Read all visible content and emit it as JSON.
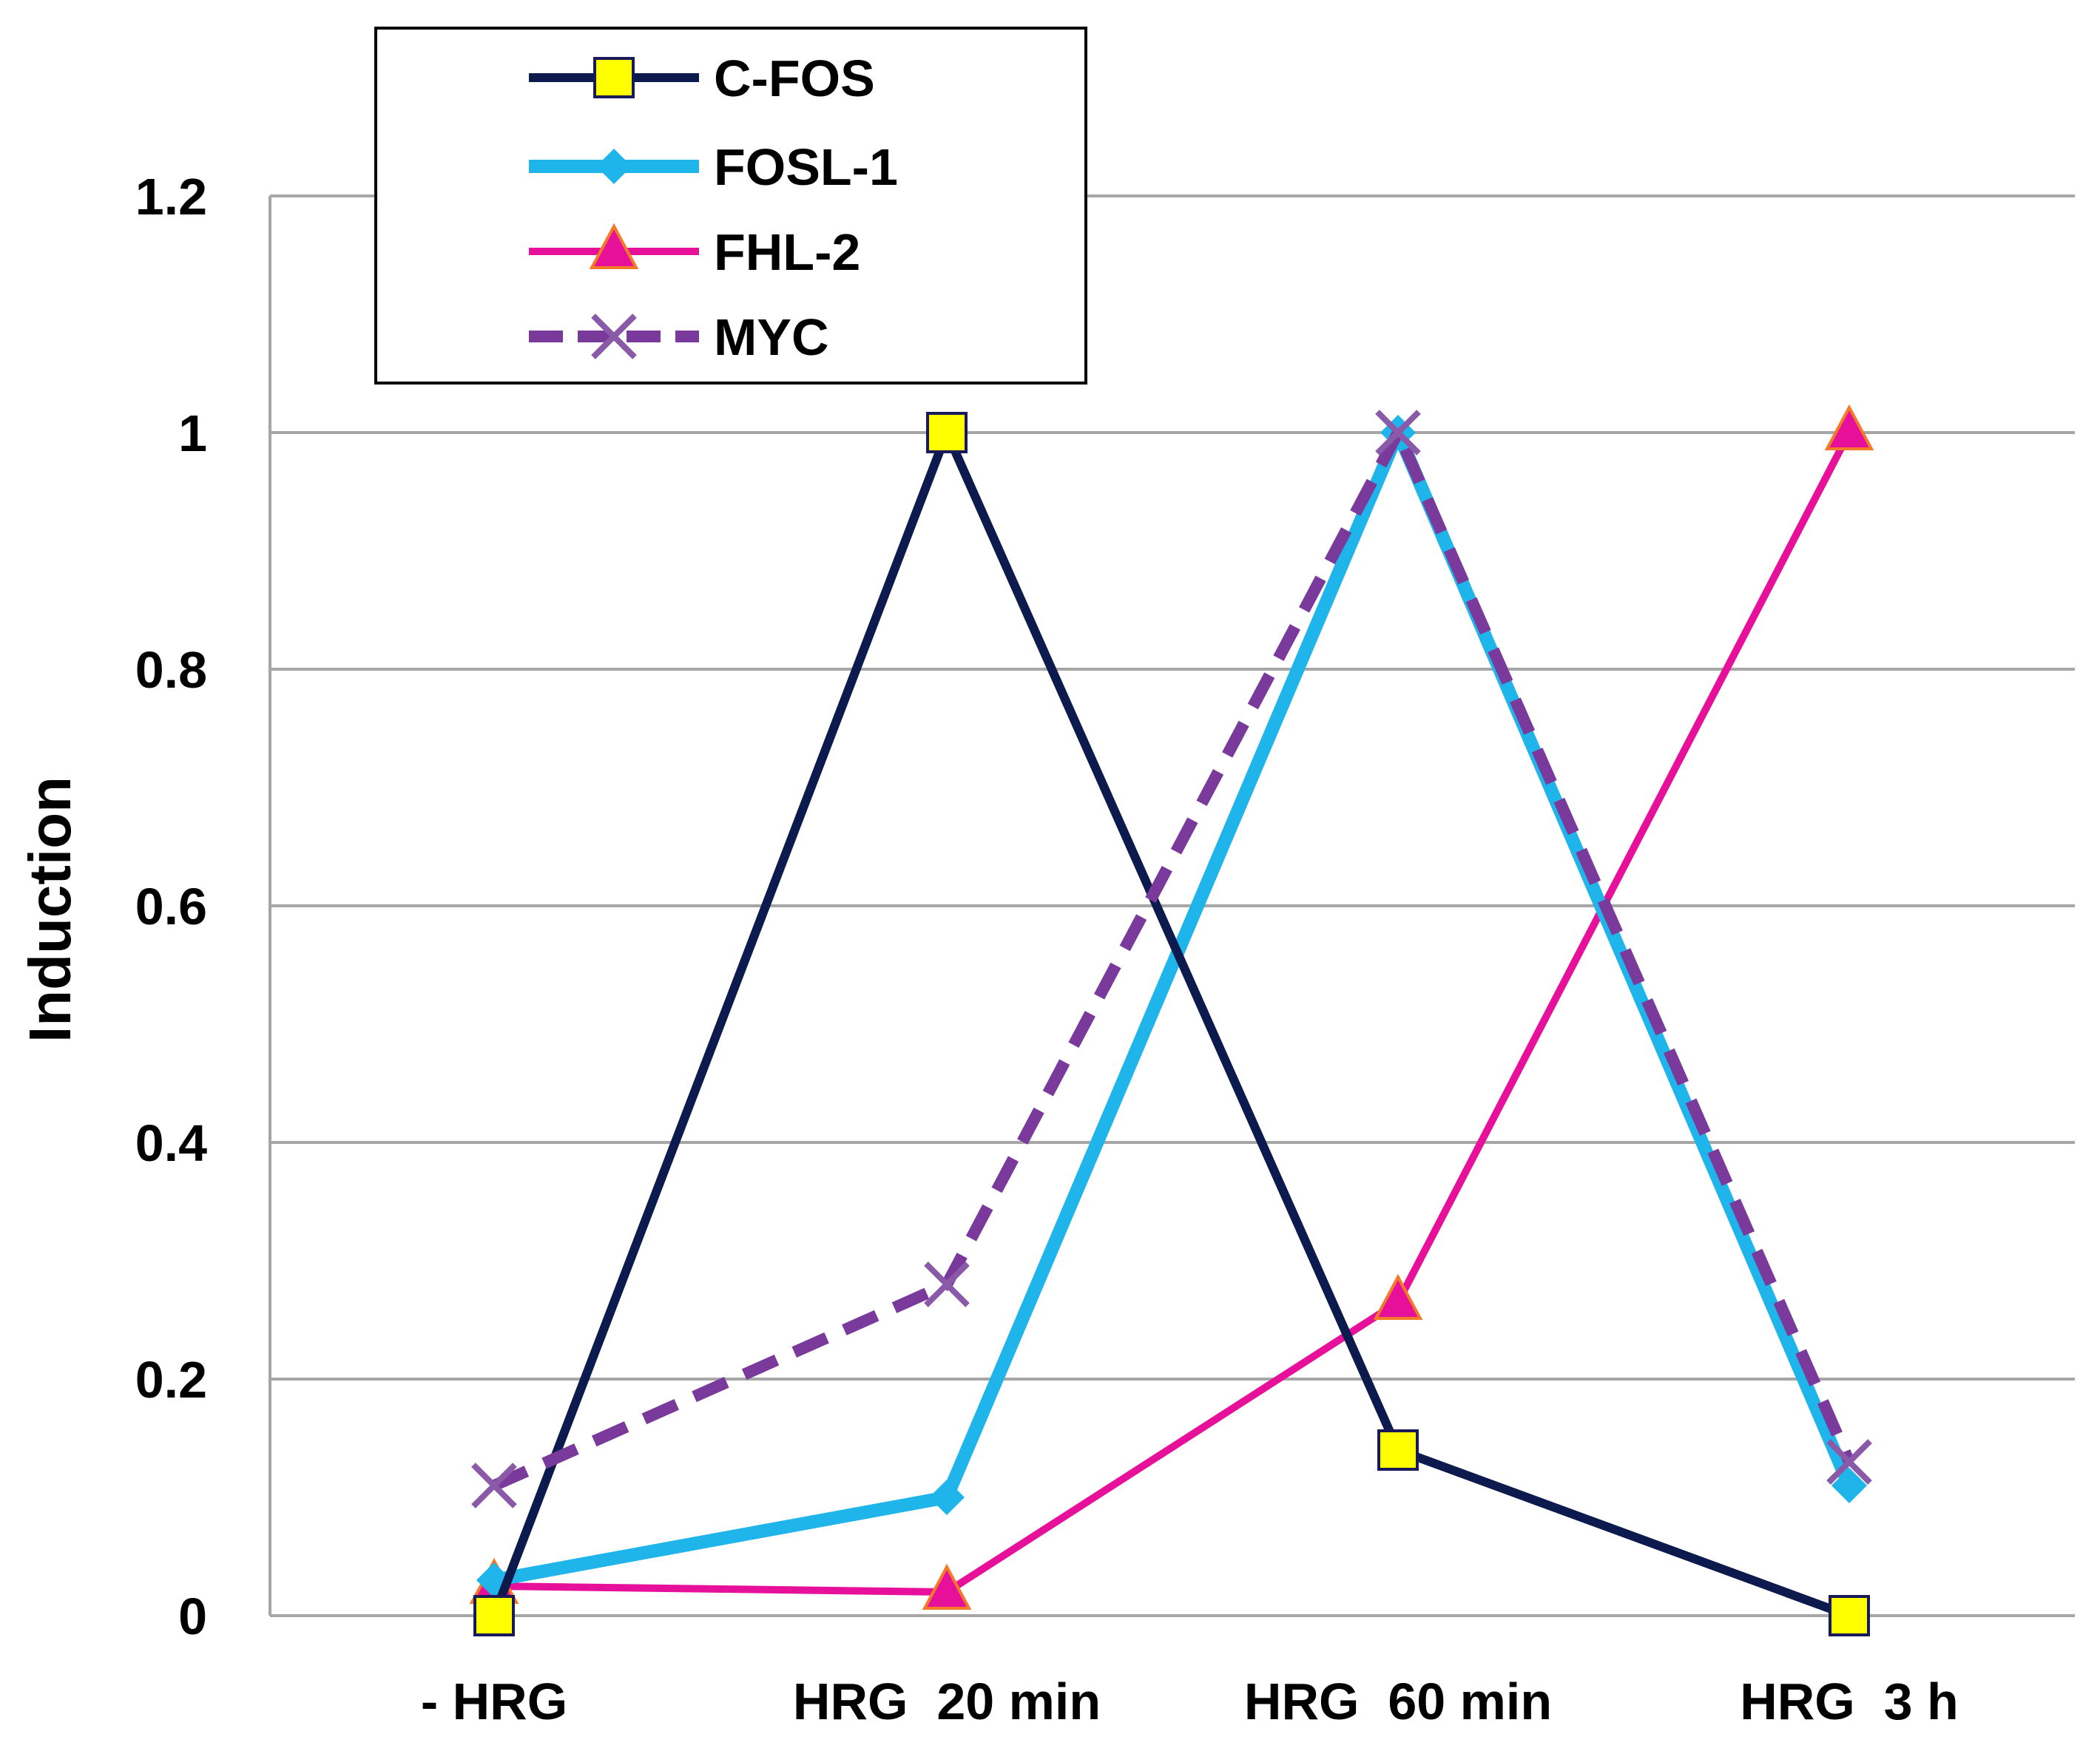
{
  "chart_data": {
    "type": "line",
    "title": "",
    "xlabel": "",
    "ylabel": "Induction",
    "ylim": [
      0,
      1.2
    ],
    "yticks": [
      "0",
      "0.2",
      "0.4",
      "0.6",
      "0.8",
      "1",
      "1.2"
    ],
    "grid": true,
    "legend_position": "top-left",
    "categories": [
      "- HRG",
      "HRG  20 min",
      "HRG  60 min",
      "HRG  3 h"
    ],
    "series": [
      {
        "name": "C-FOS",
        "values": [
          0.0,
          1.0,
          0.14,
          0.0
        ],
        "color": "#0d1a4d",
        "marker": "square",
        "marker_fill": "#ffff00",
        "dashed": false
      },
      {
        "name": "FOSL-1",
        "values": [
          0.03,
          0.1,
          1.0,
          0.11
        ],
        "color": "#1fb4ea",
        "marker": "diamond",
        "marker_fill": "#1fb4ea",
        "dashed": false
      },
      {
        "name": "FHL-2",
        "values": [
          0.025,
          0.02,
          0.265,
          1.0
        ],
        "color": "#e6109a",
        "marker": "triangle",
        "marker_fill": "#e6109a",
        "dashed": false
      },
      {
        "name": "MYC",
        "values": [
          0.11,
          0.28,
          1.0,
          0.13
        ],
        "color": "#7a3a9c",
        "marker": "x",
        "marker_fill": "#8a5aa8",
        "dashed": true
      }
    ]
  }
}
